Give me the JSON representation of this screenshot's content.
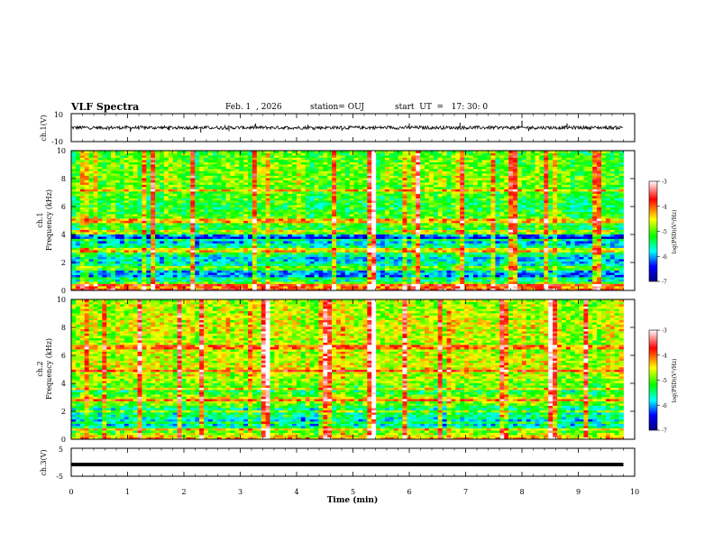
{
  "header": {
    "title": "VLF Spectra",
    "date": "Feb. 1  , 2026",
    "station": "station= OUJ",
    "start": "start  UT  =   17: 30: 0"
  },
  "panels": {
    "ch1_wave": {
      "ylabel": "ch.1(V)",
      "ytick_top": "10",
      "ytick_bottom": "-10"
    },
    "ch1_spec": {
      "ylabel_line1": "ch.1",
      "ylabel_line2": "Frequency  (kHz)"
    },
    "ch2_spec": {
      "ylabel_line1": "ch.2",
      "ylabel_line2": "Frequency  (kHz)"
    },
    "ch3_wave": {
      "ylabel": "ch.3(V)",
      "ytick_top": "5",
      "ytick_bottom": "-5"
    },
    "xlabel": "Time  (min)"
  },
  "colorbar": {
    "label": "log(PSD)(V²/Hz)",
    "ticks": [
      "-3",
      "-4",
      "-5",
      "-6",
      "-7"
    ],
    "colors": [
      "#ffffff",
      "#ff0000",
      "#ffff00",
      "#00ff00",
      "#00ffff",
      "#0000ff",
      "#000080"
    ]
  },
  "chart_data": [
    {
      "type": "line",
      "title": "",
      "ylabel": "ch.1(V)",
      "xlabel": "Time (min)",
      "xlim": [
        0,
        10
      ],
      "ylim": [
        -10,
        10
      ],
      "series": [
        {
          "description_values": "noisy waveform around 0 V with spikes",
          "baseline": 0,
          "amplitude": 1.2,
          "spikes": [
            {
              "x": 1.05,
              "y": -3
            },
            {
              "x": 2.3,
              "y": -3.5
            },
            {
              "x": 2.8,
              "y": -2.5
            },
            {
              "x": 4.2,
              "y": 2
            },
            {
              "x": 6.0,
              "y": 3
            },
            {
              "x": 6.9,
              "y": 3.5
            },
            {
              "x": 8.0,
              "y": 5
            },
            {
              "x": 8.8,
              "y": 3
            }
          ]
        }
      ]
    },
    {
      "type": "heatmap",
      "ylabel": "Frequency (kHz)",
      "xlabel": "Time (min)",
      "xlim": [
        0,
        10
      ],
      "ylim": [
        0,
        10
      ],
      "xticks": [
        "0",
        "1",
        "2",
        "3",
        "4",
        "5",
        "6",
        "7",
        "8",
        "9",
        "10"
      ],
      "yticks": [
        "0",
        "2",
        "4",
        "6",
        "8",
        "10"
      ],
      "data_end_min": 9.8,
      "zlim": [
        -7,
        -3
      ],
      "profile": [
        [
          0.0,
          -3.6
        ],
        [
          0.3,
          -4.2
        ],
        [
          0.6,
          -5.2
        ],
        [
          0.9,
          -6.2
        ],
        [
          1.3,
          -6.0
        ],
        [
          1.8,
          -5.6
        ],
        [
          2.3,
          -5.9
        ],
        [
          2.8,
          -5.1
        ],
        [
          3.3,
          -5.7
        ],
        [
          3.8,
          -6.5
        ],
        [
          4.2,
          -5.4
        ],
        [
          5.0,
          -5.0
        ],
        [
          6.0,
          -5.3
        ],
        [
          7.0,
          -5.1
        ],
        [
          8.0,
          -4.9
        ],
        [
          9.0,
          -5.0
        ],
        [
          10.0,
          -5.1
        ]
      ],
      "vertical_bursts_min": [
        1.4,
        2.1,
        3.2,
        4.6,
        5.3,
        5.35,
        6.1,
        6.9,
        7.8,
        8.4,
        9.3
      ],
      "horizontal_lines_khz": [
        0.4,
        0.9,
        1.6,
        2.9,
        3.6,
        4.2,
        5.0,
        7.2
      ]
    },
    {
      "type": "heatmap",
      "ylabel": "Frequency (kHz)",
      "xlabel": "Time (min)",
      "xlim": [
        0,
        10
      ],
      "ylim": [
        0,
        10
      ],
      "xticks": [
        "0",
        "1",
        "2",
        "3",
        "4",
        "5",
        "6",
        "7",
        "8",
        "9",
        "10"
      ],
      "yticks": [
        "0",
        "2",
        "4",
        "6",
        "8",
        "10"
      ],
      "data_end_min": 9.8,
      "zlim": [
        -7,
        -3
      ],
      "profile": [
        [
          0.0,
          -4.1
        ],
        [
          0.4,
          -4.8
        ],
        [
          0.8,
          -5.3
        ],
        [
          1.2,
          -6.1
        ],
        [
          1.7,
          -5.4
        ],
        [
          2.1,
          -5.7
        ],
        [
          2.6,
          -4.9
        ],
        [
          3.0,
          -4.7
        ],
        [
          3.4,
          -5.4
        ],
        [
          4.0,
          -4.9
        ],
        [
          5.0,
          -4.6
        ],
        [
          6.0,
          -4.7
        ],
        [
          7.0,
          -4.8
        ],
        [
          8.0,
          -4.6
        ],
        [
          9.0,
          -4.7
        ],
        [
          10.0,
          -4.8
        ]
      ],
      "vertical_bursts_min": [
        1.2,
        1.9,
        2.3,
        3.4,
        4.5,
        5.3,
        5.35,
        5.9,
        6.5,
        7.6,
        8.5,
        9.1
      ],
      "horizontal_lines_khz": [
        0.7,
        1.2,
        2.0,
        2.8,
        3.6,
        4.9,
        6.6
      ]
    },
    {
      "type": "line",
      "ylabel": "ch.3(V)",
      "xlabel": "Time (min)",
      "xlim": [
        0,
        10
      ],
      "ylim": [
        -5,
        5
      ],
      "xticks": [
        "0",
        "1",
        "2",
        "3",
        "4",
        "5",
        "6",
        "7",
        "8",
        "9",
        "10"
      ],
      "series": [
        {
          "x": [
            0,
            9.8
          ],
          "y": [
            -0.8,
            -0.8
          ]
        }
      ]
    }
  ]
}
